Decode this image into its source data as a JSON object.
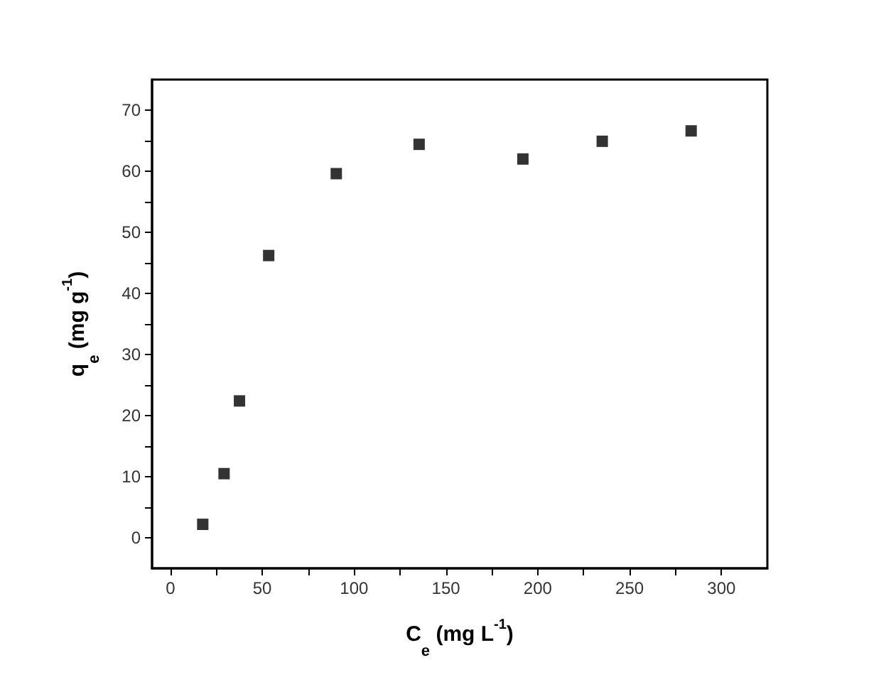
{
  "chart_data": {
    "type": "scatter",
    "xlabel": "C$_{e}$ (mg L$^{-1}$)",
    "ylabel": "q$_{e}$ (mg g$^{-1}$)",
    "x": [
      17.6,
      29.2,
      37.6,
      53.5,
      90.3,
      135.4,
      191.9,
      235.1,
      283.5
    ],
    "series": [
      {
        "color": "#000000",
        "values": [
          2.2,
          10.5,
          22.4,
          46.2,
          59.6,
          64.4,
          62.0,
          64.9,
          66.6
        ]
      }
    ],
    "xlim": [
      -10,
      325
    ],
    "xticks": [
      0,
      50,
      100,
      150,
      200,
      250,
      300
    ],
    "ylim": [
      -5,
      75
    ],
    "yticks": [
      0,
      10,
      20,
      30,
      40,
      50,
      60,
      70
    ],
    "marker": "square",
    "grid": false
  }
}
